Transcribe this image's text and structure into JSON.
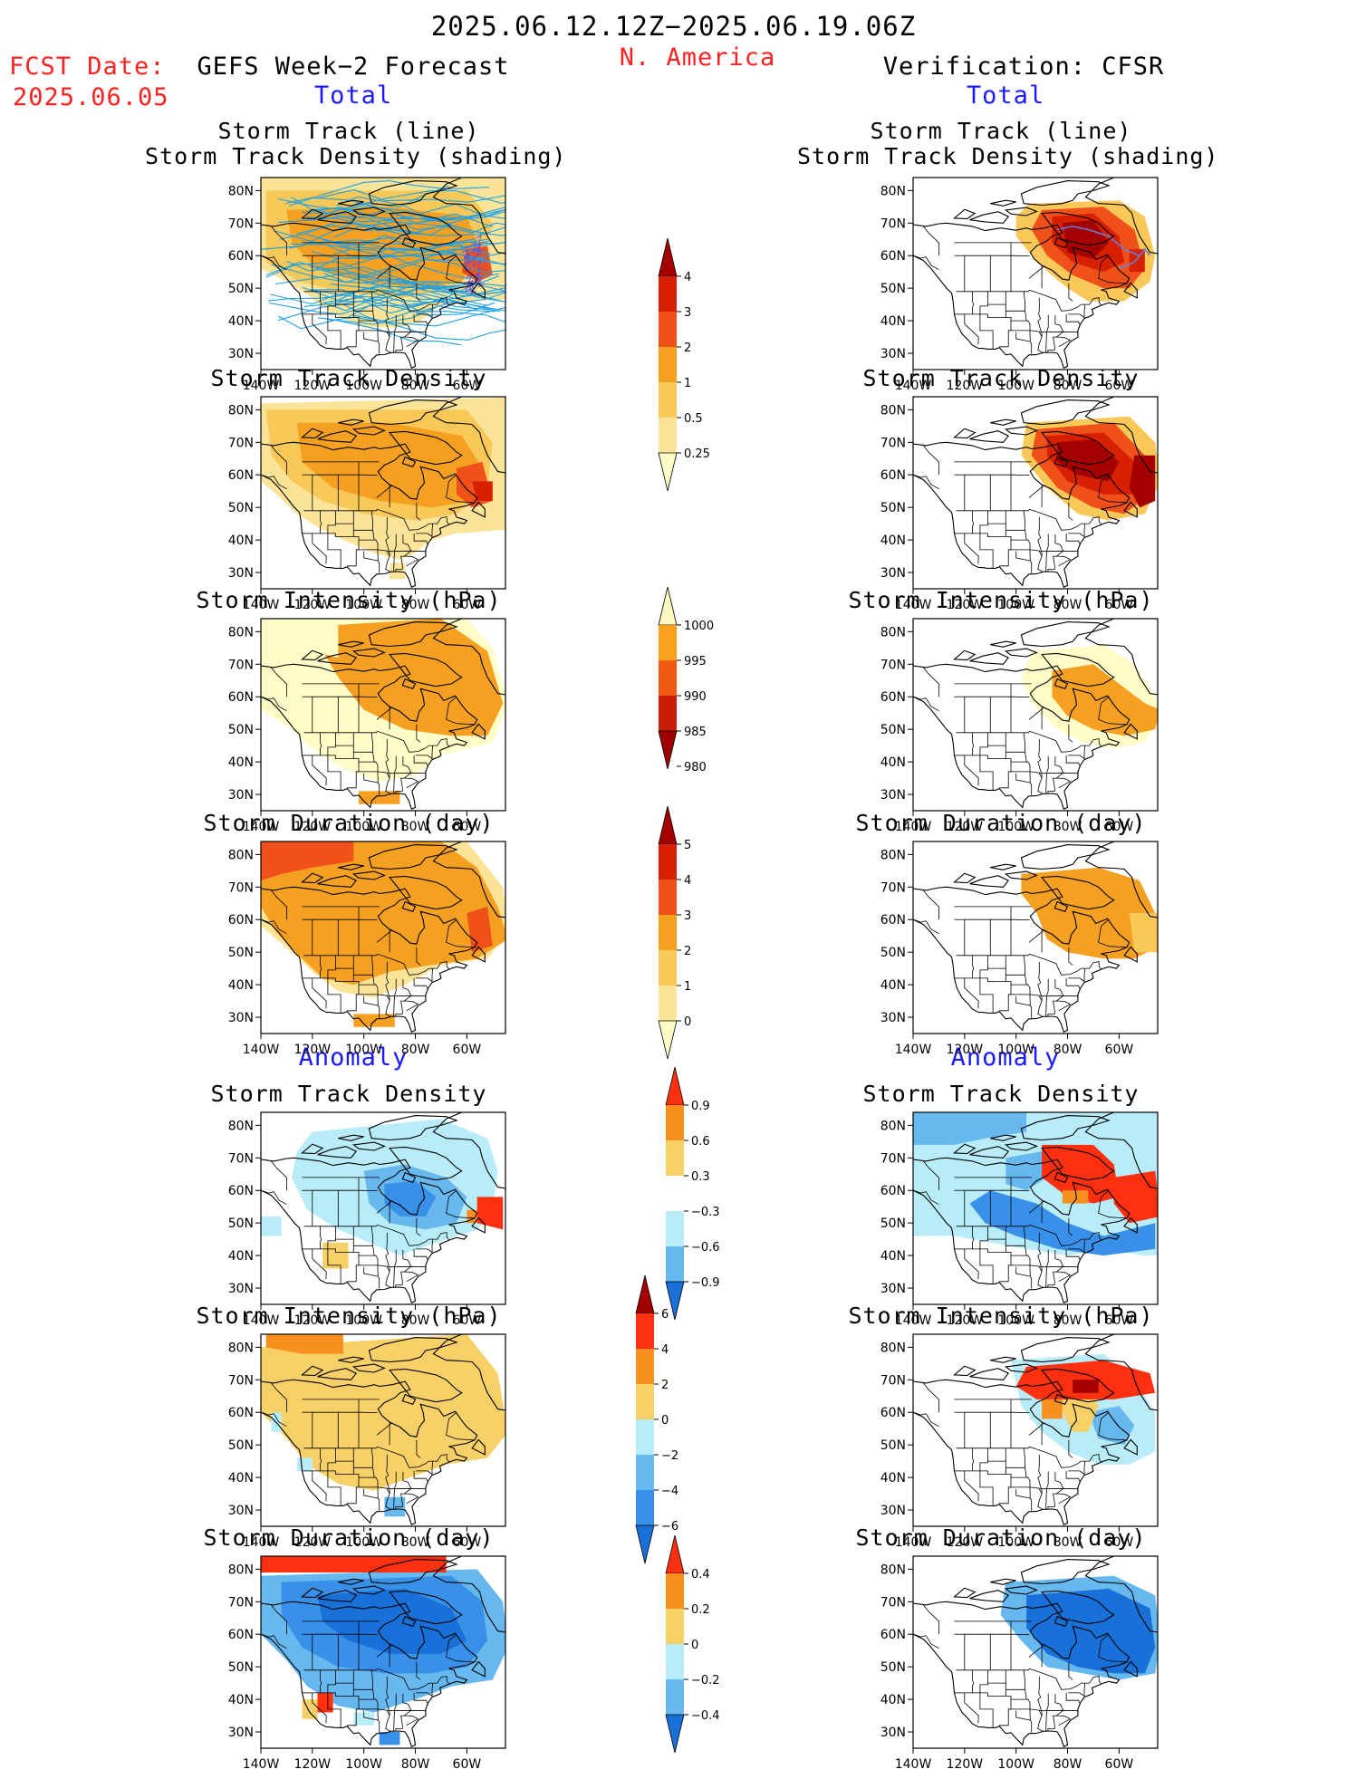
{
  "header": {
    "date_range": "2025.06.12.12Z−2025.06.19.06Z",
    "region": "N. America",
    "fcst_label": "FCST Date:",
    "fcst_date": "2025.06.05",
    "left_title": "GEFS Week−2 Forecast",
    "right_title": "Verification: CFSR"
  },
  "sections": {
    "total_label": "Total",
    "anomaly_label": "Anomaly"
  },
  "axes": {
    "lat_labels": [
      "80N",
      "70N",
      "60N",
      "50N",
      "40N",
      "30N"
    ],
    "lon_labels": [
      "140W",
      "120W",
      "100W",
      "80W",
      "60W"
    ]
  },
  "panels": {
    "track_line_1": "Storm Track (line)",
    "track_line_2": "Storm Track Density (shading)",
    "track_density": "Storm Track Density",
    "intensity": "Storm Intensity (hPa)",
    "duration": "Storm Duration (day)"
  },
  "colorbars": {
    "density": {
      "labels": [
        "4",
        "3",
        "2",
        "1",
        "0.5",
        "0.25"
      ],
      "colors": [
        "#a40000",
        "#d62000",
        "#f0501a",
        "#f5a020",
        "#f8c858",
        "#fbe498",
        "#fffcc8"
      ]
    },
    "intensity": {
      "labels": [
        "1000",
        "995",
        "990",
        "985",
        "980"
      ],
      "colors": [
        "#fff8c0",
        "#f8a020",
        "#ee5a14",
        "#c81e06",
        "#a00000"
      ]
    },
    "duration": {
      "labels": [
        "5",
        "4",
        "3",
        "2",
        "1",
        "0"
      ],
      "colors": [
        "#a40000",
        "#d62000",
        "#f0501a",
        "#f5a020",
        "#f8c858",
        "#fbe498",
        "#fffcc8"
      ]
    },
    "anom_density": {
      "labels": [
        "0.9",
        "0.6",
        "0.3",
        "−0.3",
        "−0.6",
        "−0.9"
      ],
      "colors": [
        "#ff3010",
        "#f89020",
        "#f8d068",
        "#ffffff",
        "#b8ecf8",
        "#68b8f0",
        "#1870d8"
      ]
    },
    "anom_intensity": {
      "labels": [
        "6",
        "4",
        "2",
        "0",
        "−2",
        "−4",
        "−6"
      ],
      "colors": [
        "#a40000",
        "#ff3010",
        "#f89020",
        "#f8d068",
        "#b8ecf8",
        "#68b8f0",
        "#3890e8",
        "#1870d8"
      ]
    },
    "anom_duration": {
      "labels": [
        "0.4",
        "0.2",
        "0",
        "−0.2",
        "−0.4"
      ],
      "colors": [
        "#ff3010",
        "#f89020",
        "#f8d068",
        "#b8ecf8",
        "#68b8f0",
        "#1870d8"
      ]
    }
  },
  "colors": {
    "heading_red": "#ff2020",
    "heading_blue": "#1a1aff",
    "track_line": "#1ea0e6"
  }
}
